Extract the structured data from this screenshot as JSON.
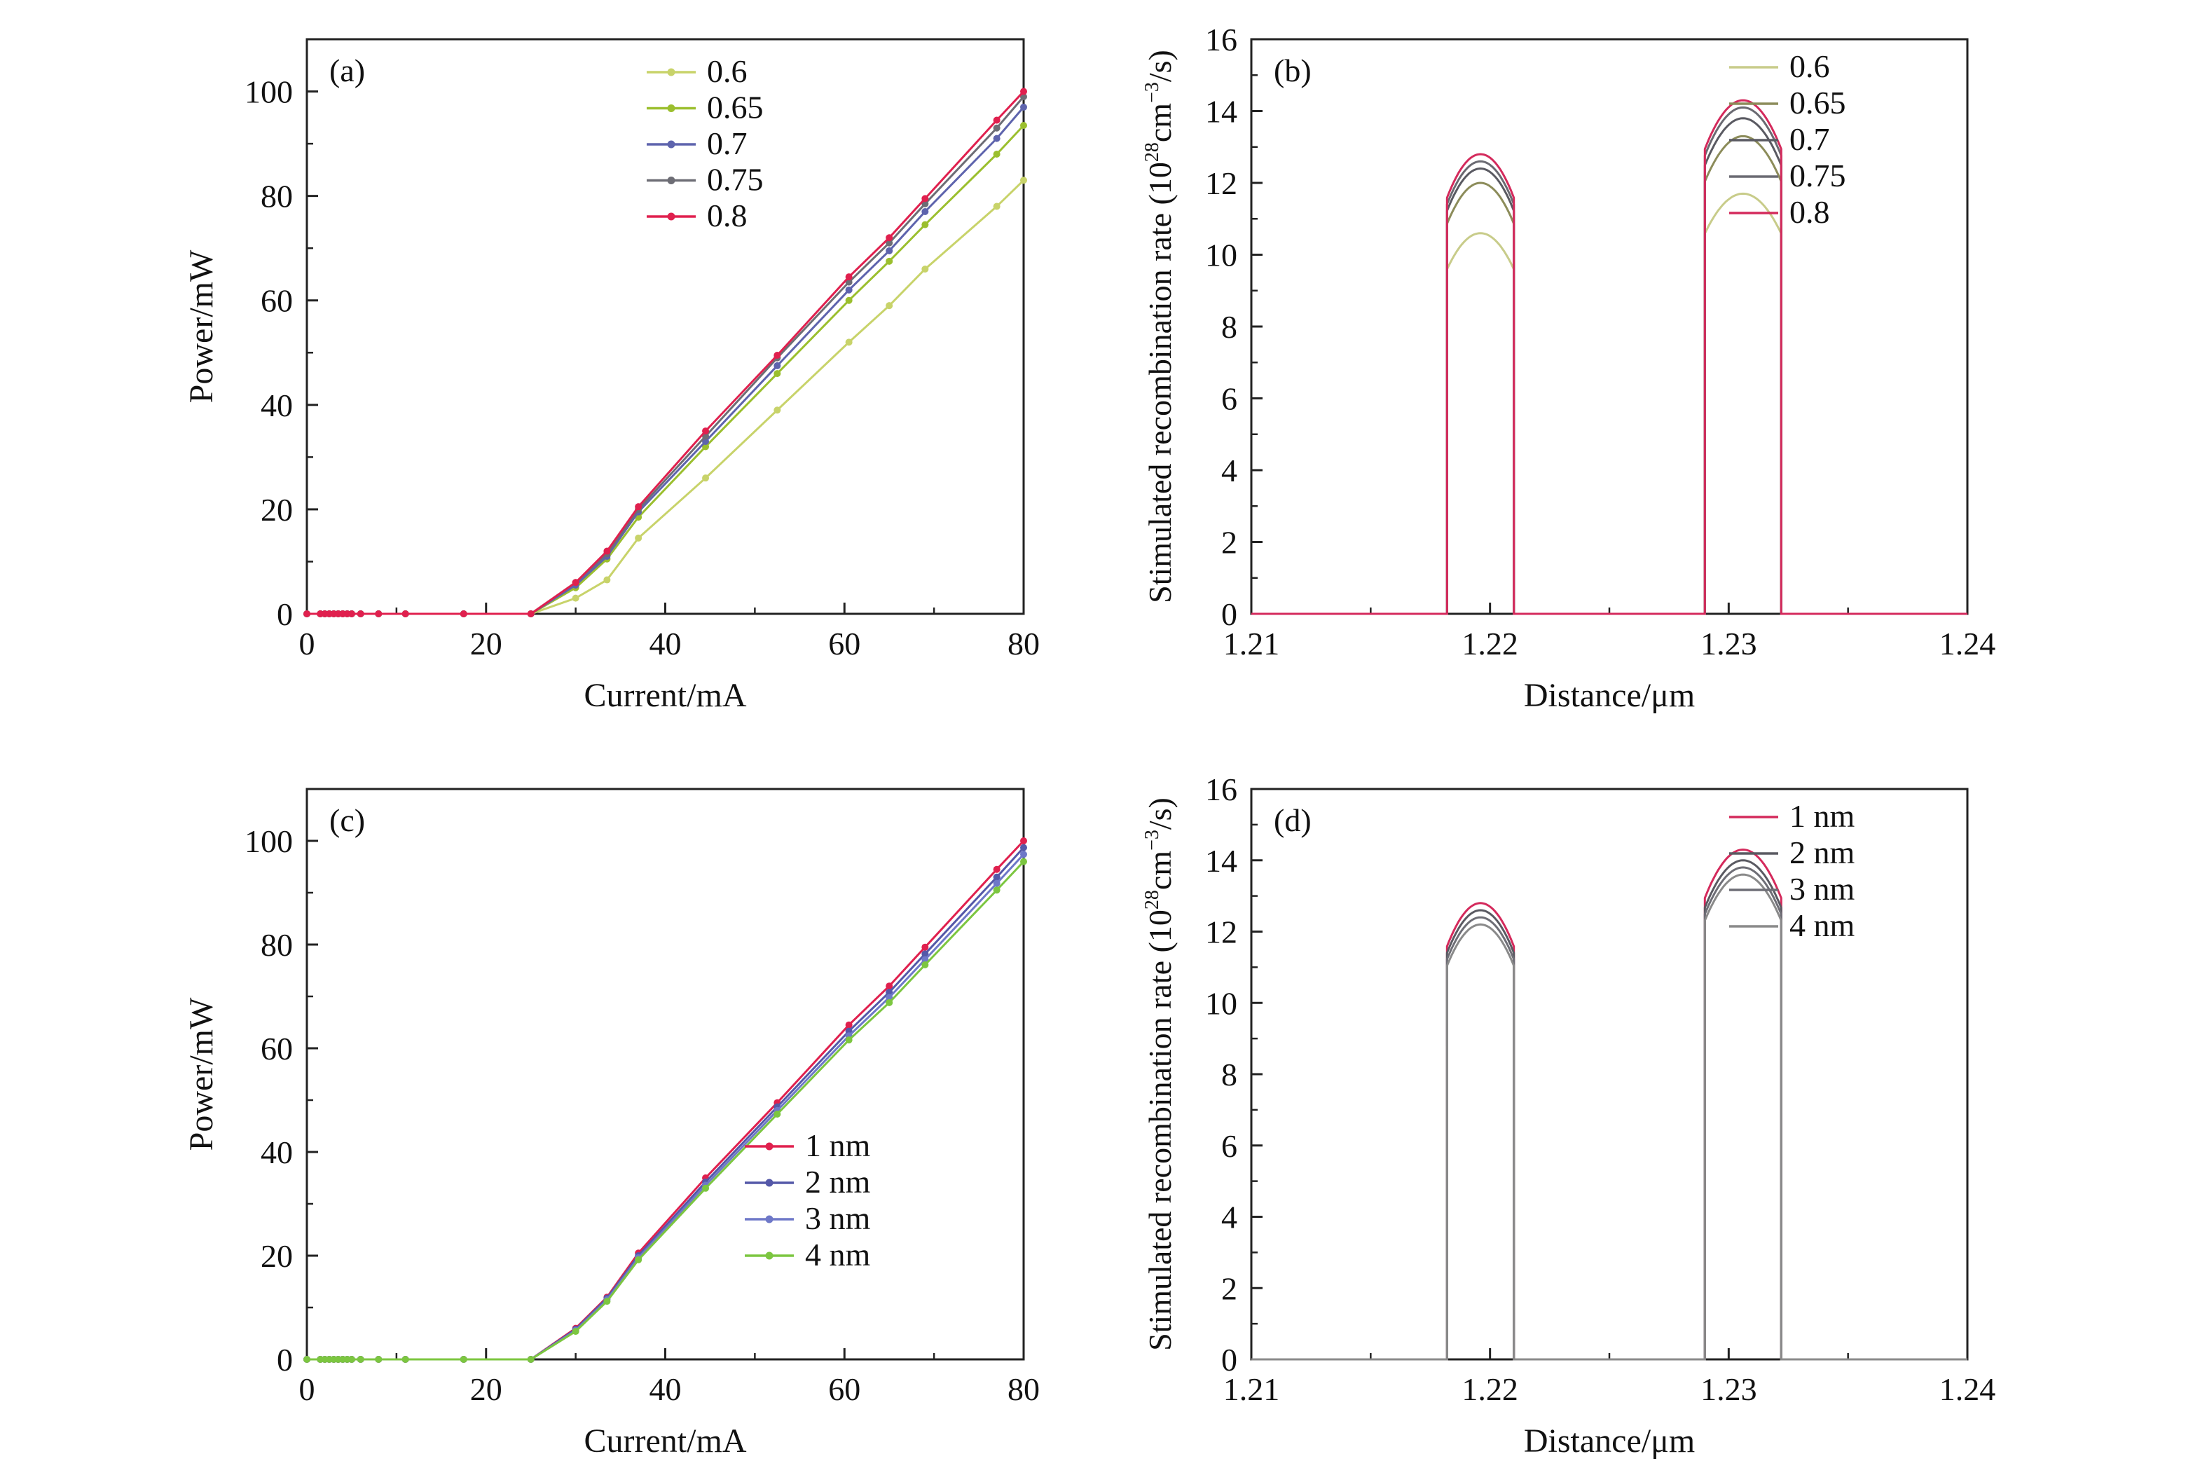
{
  "chart_data": [
    {
      "type": "line",
      "panel_label": "(a)",
      "xlabel": "Current/mA",
      "ylabel": "Power/mW",
      "xlim": [
        0,
        80
      ],
      "ylim": [
        0,
        110
      ],
      "xticks": [
        "0",
        "20",
        "40",
        "60",
        "80"
      ],
      "yticks": [
        "0",
        "20",
        "40",
        "60",
        "80",
        "100"
      ],
      "legend_position": "top-right",
      "markers": true,
      "x": [
        0,
        1.5,
        2,
        2.5,
        3,
        3.5,
        4,
        4.5,
        5,
        6,
        8,
        11,
        17.5,
        25,
        30,
        33.5,
        37,
        44.5,
        52.5,
        60.5,
        65,
        69,
        77,
        80
      ],
      "series": [
        {
          "name": "0.6",
          "color": "#c8d36a",
          "values": [
            0,
            0,
            0,
            0,
            0,
            0,
            0,
            0,
            0,
            0,
            0,
            0,
            0,
            0,
            3,
            6.5,
            14.5,
            26,
            39,
            52,
            59,
            66,
            78,
            83
          ]
        },
        {
          "name": "0.65",
          "color": "#9bbf2e",
          "values": [
            0,
            0,
            0,
            0,
            0,
            0,
            0,
            0,
            0,
            0,
            0,
            0,
            0,
            0,
            5,
            10.5,
            18.5,
            32,
            46,
            60,
            67.5,
            74.5,
            88,
            93.5
          ]
        },
        {
          "name": "0.7",
          "color": "#5e64ad",
          "values": [
            0,
            0,
            0,
            0,
            0,
            0,
            0,
            0,
            0,
            0,
            0,
            0,
            0,
            0,
            5.5,
            11,
            19.5,
            33,
            47.5,
            62,
            69.5,
            77,
            91,
            97
          ]
        },
        {
          "name": "0.75",
          "color": "#6d6d75",
          "values": [
            0,
            0,
            0,
            0,
            0,
            0,
            0,
            0,
            0,
            0,
            0,
            0,
            0,
            0,
            6,
            11.5,
            20,
            34,
            49,
            63.5,
            71,
            78.5,
            93,
            99
          ]
        },
        {
          "name": "0.8",
          "color": "#e0204e",
          "values": [
            0,
            0,
            0,
            0,
            0,
            0,
            0,
            0,
            0,
            0,
            0,
            0,
            0,
            0,
            6,
            12,
            20.5,
            35,
            49.5,
            64.5,
            72,
            79.5,
            94.5,
            100
          ]
        }
      ]
    },
    {
      "type": "line",
      "panel_label": "(b)",
      "xlabel": "Distance/μm",
      "ylabel_main": "Stimulated recombination rate (10",
      "ylabel_sup1": "28",
      "ylabel_mid": "cm",
      "ylabel_sup2": "−3",
      "ylabel_end": "/s)",
      "xlim": [
        1.21,
        1.24
      ],
      "ylim": [
        0,
        16
      ],
      "xticks": [
        "1.21",
        "1.22",
        "1.23",
        "1.24"
      ],
      "yticks": [
        "0",
        "2",
        "4",
        "6",
        "8",
        "10",
        "12",
        "14",
        "16"
      ],
      "legend_position": "top-right",
      "markers": false,
      "segments": [
        [
          1.2182,
          1.221
        ],
        [
          1.229,
          1.2322
        ]
      ],
      "series": [
        {
          "name": "0.6",
          "color": "#c8cc8a",
          "peaks": [
            10.6,
            11.7
          ]
        },
        {
          "name": "0.65",
          "color": "#8c8c5a",
          "peaks": [
            12.0,
            13.3
          ]
        },
        {
          "name": "0.7",
          "color": "#5a5a62",
          "peaks": [
            12.4,
            13.8
          ]
        },
        {
          "name": "0.75",
          "color": "#6a6a72",
          "peaks": [
            12.6,
            14.1
          ]
        },
        {
          "name": "0.8",
          "color": "#d42a5c",
          "peaks": [
            12.8,
            14.3
          ]
        }
      ]
    },
    {
      "type": "line",
      "panel_label": "(c)",
      "xlabel": "Current/mA",
      "ylabel": "Power/mW",
      "xlim": [
        0,
        80
      ],
      "ylim": [
        0,
        110
      ],
      "xticks": [
        "0",
        "20",
        "40",
        "60",
        "80"
      ],
      "yticks": [
        "0",
        "20",
        "40",
        "60",
        "80",
        "100"
      ],
      "legend_position": "lower-right",
      "markers": true,
      "x": [
        0,
        1.5,
        2,
        2.5,
        3,
        3.5,
        4,
        4.5,
        5,
        6,
        8,
        11,
        17.5,
        25,
        30,
        33.5,
        37,
        44.5,
        52.5,
        60.5,
        65,
        69,
        77,
        80
      ],
      "series": [
        {
          "name": "1 nm",
          "color": "#e0204e",
          "values": [
            0,
            0,
            0,
            0,
            0,
            0,
            0,
            0,
            0,
            0,
            0,
            0,
            0,
            0,
            6,
            12,
            20.5,
            35,
            49.5,
            64.5,
            72,
            79.5,
            94.5,
            100
          ]
        },
        {
          "name": "2 nm",
          "color": "#5458a8",
          "values": [
            0,
            0,
            0,
            0,
            0,
            0,
            0,
            0,
            0,
            0,
            0,
            0,
            0,
            0,
            5.8,
            11.8,
            20,
            34.2,
            48.7,
            63.3,
            70.8,
            78.2,
            93,
            98.7
          ]
        },
        {
          "name": "3 nm",
          "color": "#6e78c8",
          "values": [
            0,
            0,
            0,
            0,
            0,
            0,
            0,
            0,
            0,
            0,
            0,
            0,
            0,
            0,
            5.6,
            11.5,
            19.6,
            33.6,
            48,
            62.4,
            69.8,
            77.1,
            91.8,
            97.4
          ]
        },
        {
          "name": "4 nm",
          "color": "#7cc640",
          "values": [
            0,
            0,
            0,
            0,
            0,
            0,
            0,
            0,
            0,
            0,
            0,
            0,
            0,
            0,
            5.4,
            11.2,
            19.2,
            33,
            47.3,
            61.6,
            68.8,
            76.1,
            90.5,
            96
          ]
        }
      ]
    },
    {
      "type": "line",
      "panel_label": "(d)",
      "xlabel": "Distance/μm",
      "ylabel_main": "Stimulated recombination rate (10",
      "ylabel_sup1": "28",
      "ylabel_mid": "cm",
      "ylabel_sup2": "−3",
      "ylabel_end": "/s)",
      "xlim": [
        1.21,
        1.24
      ],
      "ylim": [
        0,
        16
      ],
      "xticks": [
        "1.21",
        "1.22",
        "1.23",
        "1.24"
      ],
      "yticks": [
        "0",
        "2",
        "4",
        "6",
        "8",
        "10",
        "12",
        "14",
        "16"
      ],
      "legend_position": "top-right",
      "markers": false,
      "segments": [
        [
          1.2182,
          1.221
        ],
        [
          1.229,
          1.2322
        ]
      ],
      "series": [
        {
          "name": "1 nm",
          "color": "#d42a5c",
          "peaks": [
            12.8,
            14.3
          ]
        },
        {
          "name": "2 nm",
          "color": "#5a5a62",
          "peaks": [
            12.6,
            14.0
          ]
        },
        {
          "name": "3 nm",
          "color": "#6e6e76",
          "peaks": [
            12.4,
            13.8
          ]
        },
        {
          "name": "4 nm",
          "color": "#8a8a8a",
          "peaks": [
            12.2,
            13.6
          ]
        }
      ]
    }
  ]
}
